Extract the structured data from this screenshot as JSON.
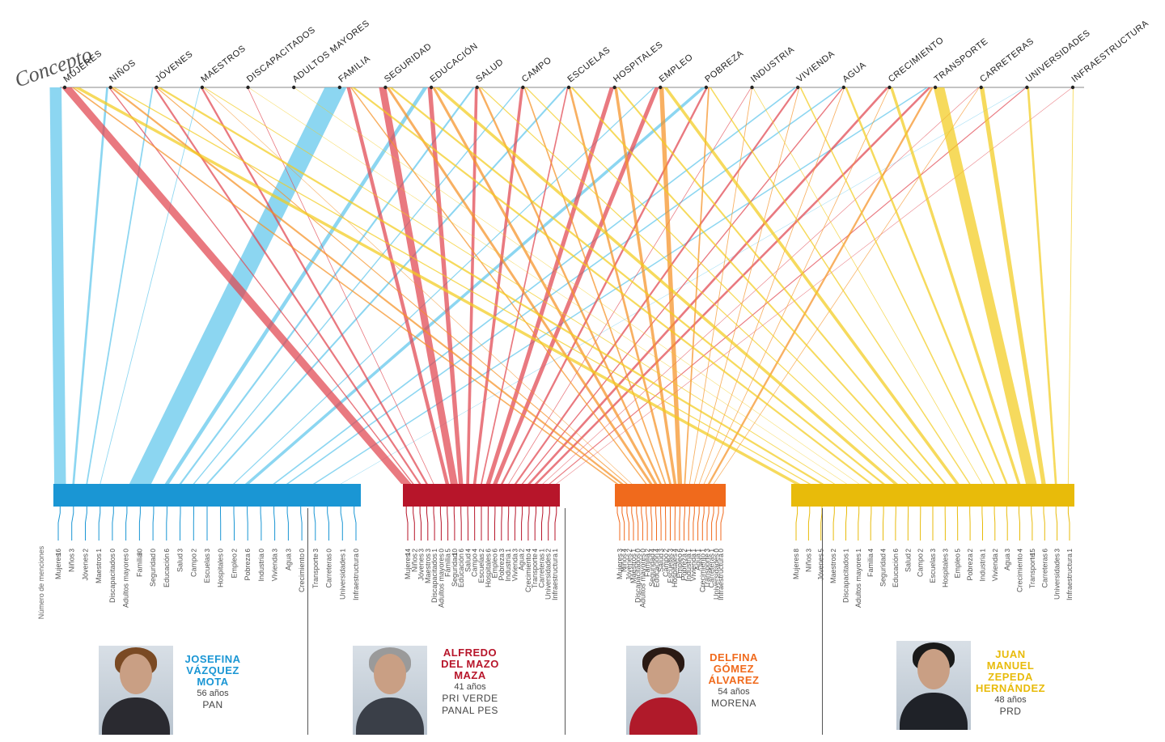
{
  "title": "Concepto",
  "concepts": [
    "MUJERES",
    "NIÑOS",
    "JÓVENES",
    "MAESTROS",
    "DISCAPACITADOS",
    "ADULTOS MAYORES",
    "FAMILIA",
    "SEGURIDAD",
    "EDUCACIÓN",
    "SALUD",
    "CAMPO",
    "ESCUELAS",
    "HOSPITALES",
    "EMPLEO",
    "POBREZA",
    "INDUSTRIA",
    "VIVIENDA",
    "AGUA",
    "CRECIMIENTO",
    "TRANSPORTE",
    "CARRETERAS",
    "UNIVERSIDADES",
    "INFRAESTRUCTURA"
  ],
  "side_label": "Número de menciones",
  "candidates": [
    {
      "name_lines": [
        "JOSEFINA",
        "VÁZQUEZ",
        "MOTA"
      ],
      "age": "56 años",
      "party_lines": [
        "PAN"
      ],
      "color": "#1a96d4",
      "light": "#5fc6ec"
    },
    {
      "name_lines": [
        "ALFREDO",
        "DEL MAZO",
        "MAZA"
      ],
      "age": "41 años",
      "party_lines": [
        "PRI VERDE",
        "PANAL PES"
      ],
      "color": "#b7152a",
      "light": "#e0454f"
    },
    {
      "name_lines": [
        "DELFINA",
        "GÓMEZ",
        "ÁLVAREZ"
      ],
      "age": "54 años",
      "party_lines": [
        "MORENA"
      ],
      "color": "#f06a1c",
      "light": "#f59126"
    },
    {
      "name_lines": [
        "JUAN",
        "MANUEL",
        "ZEPEDA",
        "HERNÁNDEZ"
      ],
      "age": "48 años",
      "party_lines": [
        "PRD"
      ],
      "color": "#e8bb0a",
      "light": "#f2cc1e"
    }
  ],
  "chart_data": {
    "type": "parallel-sets",
    "categories": [
      "MUJERES",
      "NIÑOS",
      "JÓVENES",
      "MAESTROS",
      "DISCAPACITADOS",
      "ADULTOS MAYORES",
      "FAMILIA",
      "SEGURIDAD",
      "EDUCACIÓN",
      "SALUD",
      "CAMPO",
      "ESCUELAS",
      "HOSPITALES",
      "EMPLEO",
      "POBREZA",
      "INDUSTRIA",
      "VIVIENDA",
      "AGUA",
      "CRECIMIENTO",
      "TRANSPORTE",
      "CARRETERAS",
      "UNIVERSIDADES",
      "INFRAESTRUCTURA"
    ],
    "bottom_labels": [
      "Mujeres",
      "Niños",
      "Jóvenes",
      "Maestros",
      "Discapacitados",
      "Adultos mayores",
      "Familia",
      "Seguridad",
      "Educación",
      "Salud",
      "Campo",
      "Escuelas",
      "Hospitales",
      "Empleo",
      "Pobreza",
      "Industria",
      "Vivienda",
      "Agua",
      "Crecimiento",
      "Transporte",
      "Carreteras",
      "Universidades",
      "Infraestructura"
    ],
    "series": [
      {
        "name": "JOSEFINA VÁZQUEZ MOTA",
        "values": [
          16,
          3,
          2,
          1,
          0,
          0,
          30,
          0,
          6,
          3,
          2,
          3,
          0,
          2,
          6,
          0,
          3,
          3,
          0,
          3,
          0,
          1,
          0
        ]
      },
      {
        "name": "ALFREDO DEL MAZO MAZA",
        "values": [
          14,
          2,
          3,
          3,
          1,
          0,
          5,
          10,
          6,
          4,
          4,
          2,
          6,
          6,
          3,
          1,
          3,
          2,
          4,
          4,
          1,
          2,
          1
        ]
      },
      {
        "name": "DELFINA GÓMEZ ÁLVAREZ",
        "values": [
          3,
          4,
          2,
          1,
          0,
          0,
          2,
          4,
          4,
          3,
          2,
          3,
          4,
          6,
          2,
          1,
          1,
          1,
          1,
          3,
          1,
          0,
          0
        ]
      },
      {
        "name": "JUAN MANUEL ZEPEDA HERNÁNDEZ",
        "values": [
          8,
          3,
          5,
          2,
          1,
          1,
          4,
          4,
          6,
          2,
          2,
          3,
          3,
          5,
          2,
          1,
          2,
          3,
          4,
          15,
          6,
          3,
          1
        ]
      }
    ]
  }
}
